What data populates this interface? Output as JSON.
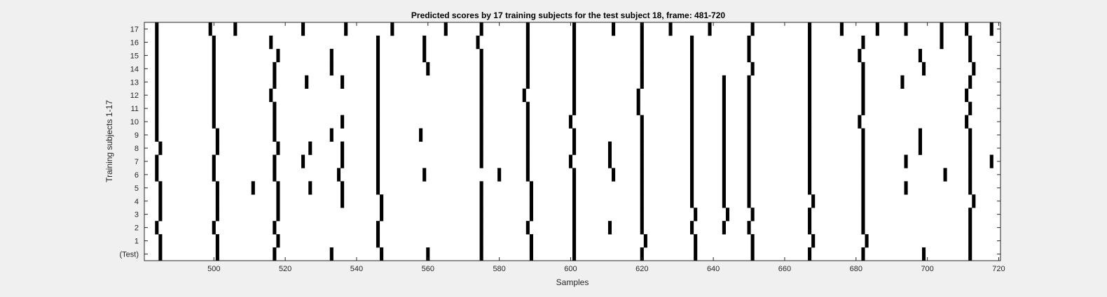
{
  "chart_data": {
    "type": "heatmap",
    "title": "Predicted scores by 17 training subjects for the test subject 18, frame: 481-720",
    "xlabel": "Samples",
    "ylabel": "Training subjects 1-17",
    "xlim": [
      481,
      720
    ],
    "xticks": [
      500,
      520,
      540,
      560,
      580,
      600,
      620,
      640,
      660,
      680,
      700,
      720
    ],
    "row_labels": [
      "(Test)",
      "1",
      "2",
      "3",
      "4",
      "5",
      "6",
      "7",
      "8",
      "9",
      "10",
      "11",
      "12",
      "13",
      "14",
      "15",
      "16",
      "17"
    ],
    "colors": {
      "background": "#ffffff",
      "mark": "#000000",
      "figure": "#f0f0f0",
      "axis": "#262626"
    },
    "rows": [
      {
        "label": "(Test)",
        "marks": [
          485,
          501,
          517,
          533,
          547,
          560,
          575,
          589,
          601,
          620,
          635,
          651,
          667,
          682,
          699,
          712
        ]
      },
      {
        "label": "1",
        "marks": [
          485,
          501,
          518,
          546,
          575,
          589,
          601,
          621,
          635,
          651,
          668,
          683,
          712
        ]
      },
      {
        "label": "2",
        "marks": [
          484,
          500,
          517,
          546,
          575,
          588,
          601,
          611,
          620,
          634,
          643,
          650,
          667,
          682,
          712
        ]
      },
      {
        "label": "3",
        "marks": [
          485,
          501,
          518,
          547,
          575,
          589,
          601,
          620,
          635,
          644,
          651,
          667,
          682,
          712
        ]
      },
      {
        "label": "4",
        "marks": [
          485,
          501,
          518,
          536,
          547,
          575,
          589,
          601,
          620,
          634,
          643,
          650,
          668,
          682,
          713
        ]
      },
      {
        "label": "5",
        "marks": [
          485,
          501,
          511,
          518,
          527,
          536,
          546,
          575,
          589,
          601,
          620,
          634,
          643,
          650,
          667,
          682,
          694,
          712
        ]
      },
      {
        "label": "6",
        "marks": [
          484,
          500,
          517,
          535,
          546,
          559,
          580,
          588,
          601,
          612,
          620,
          634,
          643,
          650,
          667,
          682,
          705,
          712
        ]
      },
      {
        "label": "7",
        "marks": [
          484,
          500,
          517,
          525,
          536,
          546,
          575,
          588,
          600,
          611,
          620,
          634,
          643,
          650,
          667,
          682,
          694,
          712,
          718
        ]
      },
      {
        "label": "8",
        "marks": [
          485,
          501,
          518,
          527,
          536,
          546,
          575,
          588,
          601,
          611,
          620,
          634,
          643,
          650,
          667,
          682,
          698,
          712
        ]
      },
      {
        "label": "9",
        "marks": [
          484,
          501,
          517,
          533,
          546,
          558,
          575,
          588,
          601,
          620,
          634,
          643,
          650,
          667,
          682,
          698,
          712
        ]
      },
      {
        "label": "10",
        "marks": [
          484,
          500,
          517,
          536,
          546,
          575,
          588,
          600,
          620,
          634,
          643,
          650,
          667,
          681,
          711
        ]
      },
      {
        "label": "11",
        "marks": [
          484,
          500,
          517,
          546,
          575,
          588,
          601,
          619,
          634,
          643,
          650,
          667,
          682,
          712
        ]
      },
      {
        "label": "12",
        "marks": [
          484,
          500,
          516,
          546,
          575,
          587,
          601,
          619,
          634,
          643,
          650,
          667,
          682,
          711
        ]
      },
      {
        "label": "13",
        "marks": [
          484,
          500,
          517,
          526,
          536,
          546,
          575,
          588,
          601,
          620,
          634,
          643,
          650,
          667,
          682,
          693,
          712
        ]
      },
      {
        "label": "14",
        "marks": [
          484,
          500,
          517,
          533,
          546,
          560,
          575,
          588,
          601,
          620,
          634,
          651,
          667,
          682,
          699,
          713
        ]
      },
      {
        "label": "15",
        "marks": [
          484,
          500,
          518,
          533,
          546,
          559,
          575,
          588,
          601,
          620,
          634,
          650,
          667,
          681,
          698,
          712
        ]
      },
      {
        "label": "16",
        "marks": [
          484,
          500,
          516,
          546,
          559,
          574,
          588,
          601,
          620,
          634,
          650,
          667,
          682,
          704,
          712
        ]
      },
      {
        "label": "17",
        "marks": [
          484,
          499,
          506,
          525,
          537,
          550,
          565,
          575,
          588,
          601,
          612,
          620,
          628,
          639,
          651,
          667,
          676,
          686,
          694,
          704,
          711,
          718
        ]
      }
    ]
  }
}
